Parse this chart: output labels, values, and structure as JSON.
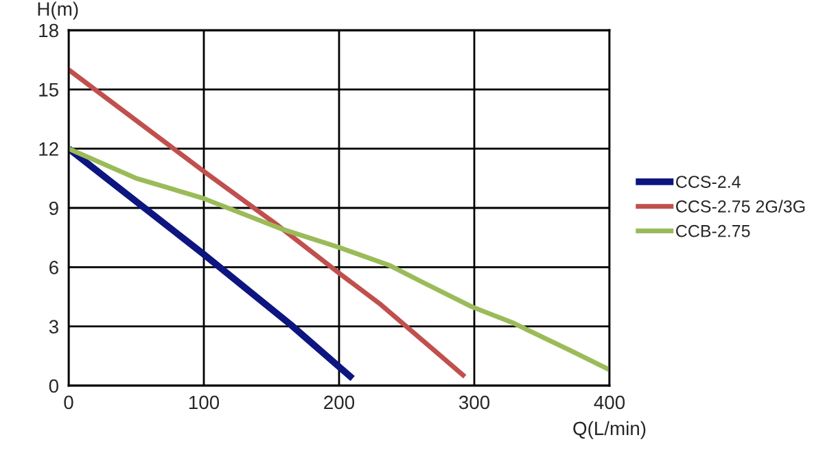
{
  "chart_data": {
    "type": "line",
    "xlabel": "Q(L/min)",
    "ylabel": "H(m)",
    "xlim": [
      0,
      400
    ],
    "xticks": [
      0,
      100,
      200,
      300,
      400
    ],
    "ylim": [
      0,
      18
    ],
    "yticks": [
      0,
      3,
      6,
      9,
      12,
      15,
      18
    ],
    "grid": true,
    "legend": "right",
    "line_style": "solid",
    "series": [
      {
        "name": "CCS-2.4",
        "color": "#0d1580",
        "x": [
          0,
          99,
          164,
          210
        ],
        "values": [
          12,
          6.7,
          3.1,
          0.36
        ]
      },
      {
        "name": "CCS-2.75 2G/3G",
        "color": "#c0504d",
        "x": [
          0,
          99,
          155,
          200,
          231,
          293
        ],
        "values": [
          16,
          10.9,
          8.1,
          5.7,
          4.1,
          0.46
        ]
      },
      {
        "name": "CCB-2.75",
        "color": "#9bbb59",
        "x": [
          0,
          50,
          99,
          159,
          200,
          237,
          260,
          298,
          328,
          372,
          400
        ],
        "values": [
          12,
          10.5,
          9.5,
          7.9,
          7.0,
          6.1,
          5.3,
          4.0,
          3.2,
          1.75,
          0.8
        ]
      }
    ]
  }
}
